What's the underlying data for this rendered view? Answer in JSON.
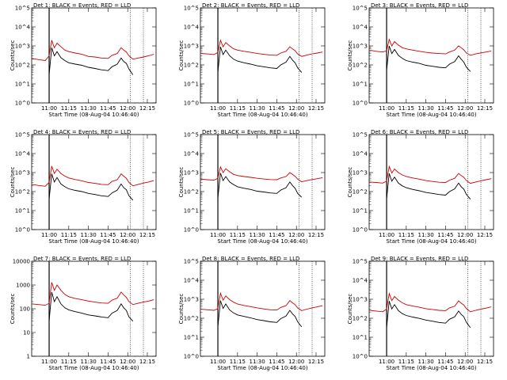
{
  "x_tick_labels": [
    "11:00",
    "11:15",
    "11:30",
    "11:45",
    "12:00",
    "12:15"
  ],
  "y_label": "Counts/sec",
  "x_label": "Start Time (08-Aug-04 10:46:40)",
  "panel_title_suffix": "BLACK = Events, RED = LLD",
  "colors": {
    "events": "#000000",
    "lld": "#cc0000",
    "markers": "#000000"
  },
  "chart_data": [
    {
      "type": "line",
      "title": "Det 1",
      "x": [
        "10:47",
        "10:52",
        "10:57",
        "11:00",
        "11:02",
        "11:04",
        "11:06",
        "11:09",
        "11:12",
        "11:15",
        "11:20",
        "11:25",
        "11:30",
        "11:35",
        "11:40",
        "11:45",
        "11:48",
        "11:52",
        "11:55",
        "11:57",
        "11:59",
        "12:01",
        "12:04",
        "12:08",
        "12:12",
        "12:16",
        "12:20"
      ],
      "y_scale": "log",
      "ylim": [
        1,
        100000
      ],
      "y_tick_labels": [
        "10^0",
        "10^1",
        "10^2",
        "10^3",
        "10^4",
        "10^5"
      ],
      "series": [
        {
          "name": "LLD",
          "color": "#cc0000",
          "values": [
            220,
            190,
            170,
            300,
            2000,
            800,
            1400,
            900,
            600,
            500,
            420,
            360,
            280,
            260,
            230,
            220,
            320,
            400,
            800,
            600,
            480,
            300,
            200,
            230,
            260,
            300,
            360
          ]
        },
        {
          "name": "Events",
          "color": "#000000",
          "values": [
            null,
            null,
            null,
            30,
            800,
            300,
            500,
            240,
            170,
            130,
            110,
            95,
            75,
            65,
            55,
            50,
            80,
            110,
            230,
            150,
            120,
            60,
            30,
            null,
            null,
            null,
            null
          ]
        }
      ],
      "markers": [
        "11:00",
        "12:02",
        "12:12"
      ]
    },
    {
      "type": "line",
      "title": "Det 2",
      "x": [
        "10:47",
        "10:52",
        "10:57",
        "11:00",
        "11:02",
        "11:04",
        "11:06",
        "11:09",
        "11:12",
        "11:15",
        "11:20",
        "11:25",
        "11:30",
        "11:35",
        "11:40",
        "11:45",
        "11:48",
        "11:52",
        "11:55",
        "11:57",
        "11:59",
        "12:01",
        "12:04",
        "12:08",
        "12:12",
        "12:16",
        "12:20"
      ],
      "y_scale": "log",
      "ylim": [
        1,
        100000
      ],
      "y_tick_labels": [
        "10^0",
        "10^1",
        "10^2",
        "10^3",
        "10^4",
        "10^5"
      ],
      "series": [
        {
          "name": "LLD",
          "color": "#cc0000",
          "values": [
            400,
            380,
            350,
            450,
            2000,
            900,
            1500,
            1000,
            700,
            600,
            520,
            460,
            400,
            360,
            330,
            320,
            420,
            520,
            900,
            700,
            560,
            380,
            280,
            330,
            380,
            420,
            480
          ]
        },
        {
          "name": "Events",
          "color": "#000000",
          "values": [
            null,
            null,
            null,
            40,
            900,
            350,
            600,
            300,
            200,
            160,
            130,
            110,
            90,
            80,
            70,
            65,
            100,
            140,
            280,
            180,
            130,
            70,
            40,
            null,
            null,
            null,
            null
          ]
        }
      ],
      "markers": [
        "11:00",
        "12:02",
        "12:12"
      ]
    },
    {
      "type": "line",
      "title": "Det 3",
      "x": [
        "10:47",
        "10:52",
        "10:57",
        "11:00",
        "11:02",
        "11:04",
        "11:06",
        "11:09",
        "11:12",
        "11:15",
        "11:20",
        "11:25",
        "11:30",
        "11:35",
        "11:40",
        "11:45",
        "11:48",
        "11:52",
        "11:55",
        "11:57",
        "11:59",
        "12:01",
        "12:04",
        "12:08",
        "12:12",
        "12:16",
        "12:20"
      ],
      "y_scale": "log",
      "ylim": [
        1,
        100000
      ],
      "y_tick_labels": [
        "10^0",
        "10^1",
        "10^2",
        "10^3",
        "10^4",
        "10^5"
      ],
      "series": [
        {
          "name": "LLD",
          "color": "#cc0000",
          "values": [
            600,
            520,
            480,
            550,
            2200,
            1000,
            1700,
            1100,
            800,
            700,
            600,
            520,
            460,
            420,
            400,
            380,
            480,
            600,
            1000,
            800,
            620,
            420,
            320,
            380,
            430,
            480,
            540
          ]
        },
        {
          "name": "Events",
          "color": "#000000",
          "values": [
            null,
            null,
            null,
            50,
            1000,
            400,
            650,
            320,
            220,
            170,
            140,
            120,
            95,
            85,
            75,
            70,
            110,
            150,
            300,
            200,
            140,
            75,
            45,
            null,
            null,
            null,
            null
          ]
        }
      ],
      "markers": [
        "11:00",
        "12:02",
        "12:12"
      ]
    },
    {
      "type": "line",
      "title": "Det 4",
      "x": [
        "10:47",
        "10:52",
        "10:57",
        "11:00",
        "11:02",
        "11:04",
        "11:06",
        "11:09",
        "11:12",
        "11:15",
        "11:20",
        "11:25",
        "11:30",
        "11:35",
        "11:40",
        "11:45",
        "11:48",
        "11:52",
        "11:55",
        "11:57",
        "11:59",
        "12:01",
        "12:04",
        "12:08",
        "12:12",
        "12:16",
        "12:20"
      ],
      "y_scale": "log",
      "ylim": [
        1,
        100000
      ],
      "y_tick_labels": [
        "10^0",
        "10^1",
        "10^2",
        "10^3",
        "10^4",
        "10^5"
      ],
      "series": [
        {
          "name": "LLD",
          "color": "#cc0000",
          "values": [
            240,
            210,
            190,
            300,
            2200,
            900,
            1500,
            900,
            650,
            520,
            430,
            370,
            300,
            270,
            240,
            230,
            340,
            420,
            850,
            650,
            500,
            300,
            200,
            240,
            280,
            320,
            380
          ]
        },
        {
          "name": "Events",
          "color": "#000000",
          "values": [
            null,
            null,
            null,
            40,
            850,
            320,
            550,
            250,
            180,
            140,
            115,
            100,
            80,
            70,
            60,
            55,
            85,
            120,
            250,
            160,
            125,
            60,
            35,
            null,
            null,
            null,
            null
          ]
        }
      ],
      "markers": [
        "11:00",
        "12:02",
        "12:12"
      ]
    },
    {
      "type": "line",
      "title": "Det 5",
      "x": [
        "10:47",
        "10:52",
        "10:57",
        "11:00",
        "11:02",
        "11:04",
        "11:06",
        "11:09",
        "11:12",
        "11:15",
        "11:20",
        "11:25",
        "11:30",
        "11:35",
        "11:40",
        "11:45",
        "11:48",
        "11:52",
        "11:55",
        "11:57",
        "11:59",
        "12:01",
        "12:04",
        "12:08",
        "12:12",
        "12:16",
        "12:20"
      ],
      "y_scale": "log",
      "ylim": [
        1,
        100000
      ],
      "y_tick_labels": [
        "10^0",
        "10^1",
        "10^2",
        "10^3",
        "10^4",
        "10^5"
      ],
      "series": [
        {
          "name": "LLD",
          "color": "#cc0000",
          "values": [
            450,
            420,
            400,
            500,
            2000,
            1000,
            1600,
            1100,
            800,
            700,
            620,
            560,
            500,
            460,
            430,
            420,
            520,
            620,
            1000,
            800,
            640,
            450,
            330,
            380,
            430,
            480,
            540
          ]
        },
        {
          "name": "Events",
          "color": "#000000",
          "values": [
            null,
            null,
            null,
            45,
            950,
            380,
            620,
            320,
            230,
            180,
            150,
            130,
            105,
            95,
            85,
            80,
            120,
            160,
            320,
            210,
            150,
            80,
            50,
            null,
            null,
            null,
            null
          ]
        }
      ],
      "markers": [
        "11:00",
        "12:02",
        "12:12"
      ]
    },
    {
      "type": "line",
      "title": "Det 6",
      "x": [
        "10:47",
        "10:52",
        "10:57",
        "11:00",
        "11:02",
        "11:04",
        "11:06",
        "11:09",
        "11:12",
        "11:15",
        "11:20",
        "11:25",
        "11:30",
        "11:35",
        "11:40",
        "11:45",
        "11:48",
        "11:52",
        "11:55",
        "11:57",
        "11:59",
        "12:01",
        "12:04",
        "12:08",
        "12:12",
        "12:16",
        "12:20"
      ],
      "y_scale": "log",
      "ylim": [
        1,
        100000
      ],
      "y_tick_labels": [
        "10^0",
        "10^1",
        "10^2",
        "10^3",
        "10^4",
        "10^5"
      ],
      "series": [
        {
          "name": "LLD",
          "color": "#cc0000",
          "values": [
            320,
            300,
            280,
            350,
            2100,
            950,
            1550,
            1000,
            750,
            620,
            520,
            450,
            380,
            340,
            310,
            300,
            400,
            500,
            900,
            700,
            560,
            380,
            270,
            320,
            370,
            420,
            480
          ]
        },
        {
          "name": "Events",
          "color": "#000000",
          "values": [
            null,
            null,
            null,
            40,
            900,
            350,
            580,
            280,
            200,
            160,
            130,
            110,
            90,
            80,
            70,
            65,
            100,
            140,
            280,
            180,
            135,
            70,
            40,
            null,
            null,
            null,
            null
          ]
        }
      ],
      "markers": [
        "11:00",
        "12:02",
        "12:12"
      ]
    },
    {
      "type": "line",
      "title": "Det 7",
      "x": [
        "10:47",
        "10:52",
        "10:57",
        "11:00",
        "11:02",
        "11:04",
        "11:06",
        "11:09",
        "11:12",
        "11:15",
        "11:20",
        "11:25",
        "11:30",
        "11:35",
        "11:40",
        "11:45",
        "11:48",
        "11:52",
        "11:55",
        "11:57",
        "11:59",
        "12:01",
        "12:04",
        "12:08",
        "12:12",
        "12:16",
        "12:20"
      ],
      "y_scale": "log",
      "ylim": [
        1,
        10000
      ],
      "y_tick_labels": [
        "1",
        "10",
        "100",
        "1000",
        "10000"
      ],
      "series": [
        {
          "name": "LLD",
          "color": "#cc0000",
          "values": [
            160,
            150,
            140,
            170,
            1300,
            600,
            1000,
            600,
            400,
            320,
            270,
            240,
            210,
            190,
            175,
            170,
            230,
            280,
            500,
            380,
            300,
            200,
            150,
            170,
            190,
            210,
            240
          ]
        },
        {
          "name": "Events",
          "color": "#000000",
          "values": [
            null,
            null,
            null,
            30,
            500,
            200,
            320,
            160,
            110,
            90,
            75,
            65,
            55,
            50,
            45,
            42,
            65,
            85,
            160,
            110,
            85,
            45,
            30,
            null,
            null,
            null,
            null
          ]
        }
      ],
      "markers": [
        "11:00",
        "12:02",
        "12:12"
      ]
    },
    {
      "type": "line",
      "title": "Det 8",
      "x": [
        "10:47",
        "10:52",
        "10:57",
        "11:00",
        "11:02",
        "11:04",
        "11:06",
        "11:09",
        "11:12",
        "11:15",
        "11:20",
        "11:25",
        "11:30",
        "11:35",
        "11:40",
        "11:45",
        "11:48",
        "11:52",
        "11:55",
        "11:57",
        "11:59",
        "12:01",
        "12:04",
        "12:08",
        "12:12",
        "12:16",
        "12:20"
      ],
      "y_scale": "log",
      "ylim": [
        1,
        100000
      ],
      "y_tick_labels": [
        "10^0",
        "10^1",
        "10^2",
        "10^3",
        "10^4",
        "10^5"
      ],
      "series": [
        {
          "name": "LLD",
          "color": "#cc0000",
          "values": [
            300,
            280,
            260,
            320,
            2100,
            900,
            1500,
            950,
            700,
            560,
            470,
            410,
            350,
            310,
            280,
            270,
            370,
            460,
            850,
            650,
            520,
            350,
            250,
            300,
            350,
            400,
            460
          ]
        },
        {
          "name": "Events",
          "color": "#000000",
          "values": [
            null,
            null,
            null,
            35,
            850,
            330,
            560,
            270,
            190,
            150,
            125,
            105,
            85,
            75,
            65,
            60,
            95,
            130,
            260,
            170,
            125,
            65,
            35,
            null,
            null,
            null,
            null
          ]
        }
      ],
      "markers": [
        "11:00",
        "12:02",
        "12:12"
      ]
    },
    {
      "type": "line",
      "title": "Det 9",
      "x": [
        "10:47",
        "10:52",
        "10:57",
        "11:00",
        "11:02",
        "11:04",
        "11:06",
        "11:09",
        "11:12",
        "11:15",
        "11:20",
        "11:25",
        "11:30",
        "11:35",
        "11:40",
        "11:45",
        "11:48",
        "11:52",
        "11:55",
        "11:57",
        "11:59",
        "12:01",
        "12:04",
        "12:08",
        "12:12",
        "12:16",
        "12:20"
      ],
      "y_scale": "log",
      "ylim": [
        1,
        100000
      ],
      "y_tick_labels": [
        "10^0",
        "10^1",
        "10^2",
        "10^3",
        "10^4",
        "10^5"
      ],
      "series": [
        {
          "name": "LLD",
          "color": "#cc0000",
          "values": [
            260,
            240,
            220,
            300,
            2000,
            850,
            1400,
            900,
            650,
            520,
            440,
            380,
            320,
            290,
            260,
            250,
            350,
            430,
            820,
            620,
            500,
            320,
            220,
            260,
            300,
            340,
            400
          ]
        },
        {
          "name": "Events",
          "color": "#000000",
          "values": [
            null,
            null,
            null,
            30,
            800,
            310,
            520,
            250,
            175,
            140,
            115,
            98,
            80,
            70,
            60,
            55,
            88,
            120,
            240,
            160,
            120,
            60,
            32,
            null,
            null,
            null,
            null
          ]
        }
      ],
      "markers": [
        "11:00",
        "12:02",
        "12:12"
      ]
    }
  ]
}
